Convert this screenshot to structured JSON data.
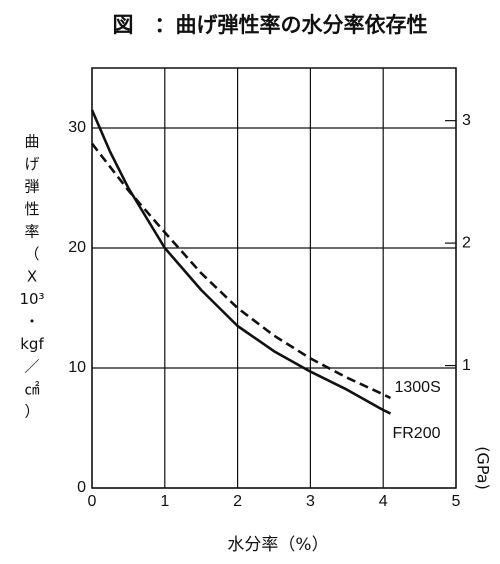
{
  "chart_data": {
    "type": "line",
    "title": "図　：曲げ弾性率の水分率依存性",
    "ylabel": [
      "曲",
      "げ",
      "弾",
      "性",
      "率",
      "（",
      "X",
      "10³",
      "・",
      "kgf",
      "／",
      "㎠",
      "）"
    ],
    "y2label": "(GPa)",
    "xlabel": "水分率（%）",
    "xlim": [
      0,
      5
    ],
    "xticks": [
      0,
      1,
      2,
      3,
      4,
      5
    ],
    "ylim": [
      0,
      35
    ],
    "yticks": [
      0,
      10,
      20,
      30
    ],
    "y2lim": [
      0,
      3.43
    ],
    "y2ticks": [
      1,
      2,
      3
    ],
    "grid": true,
    "series": [
      {
        "name": "1300S",
        "color": "#111111",
        "dash": true,
        "x": [
          0,
          0.5,
          1,
          1.5,
          2,
          2.5,
          3,
          3.5,
          4,
          4.1
        ],
        "values": [
          28.7,
          24.8,
          21.3,
          17.9,
          15.0,
          12.7,
          10.8,
          9.2,
          7.8,
          7.5
        ]
      },
      {
        "name": "FR200",
        "color": "#111111",
        "dash": false,
        "x": [
          0,
          0.25,
          0.5,
          1,
          1.5,
          2,
          2.5,
          3,
          3.5,
          4,
          4.1
        ],
        "values": [
          31.5,
          28,
          25,
          20,
          16.5,
          13.5,
          11.4,
          9.7,
          8.2,
          6.5,
          6.2
        ]
      }
    ]
  }
}
